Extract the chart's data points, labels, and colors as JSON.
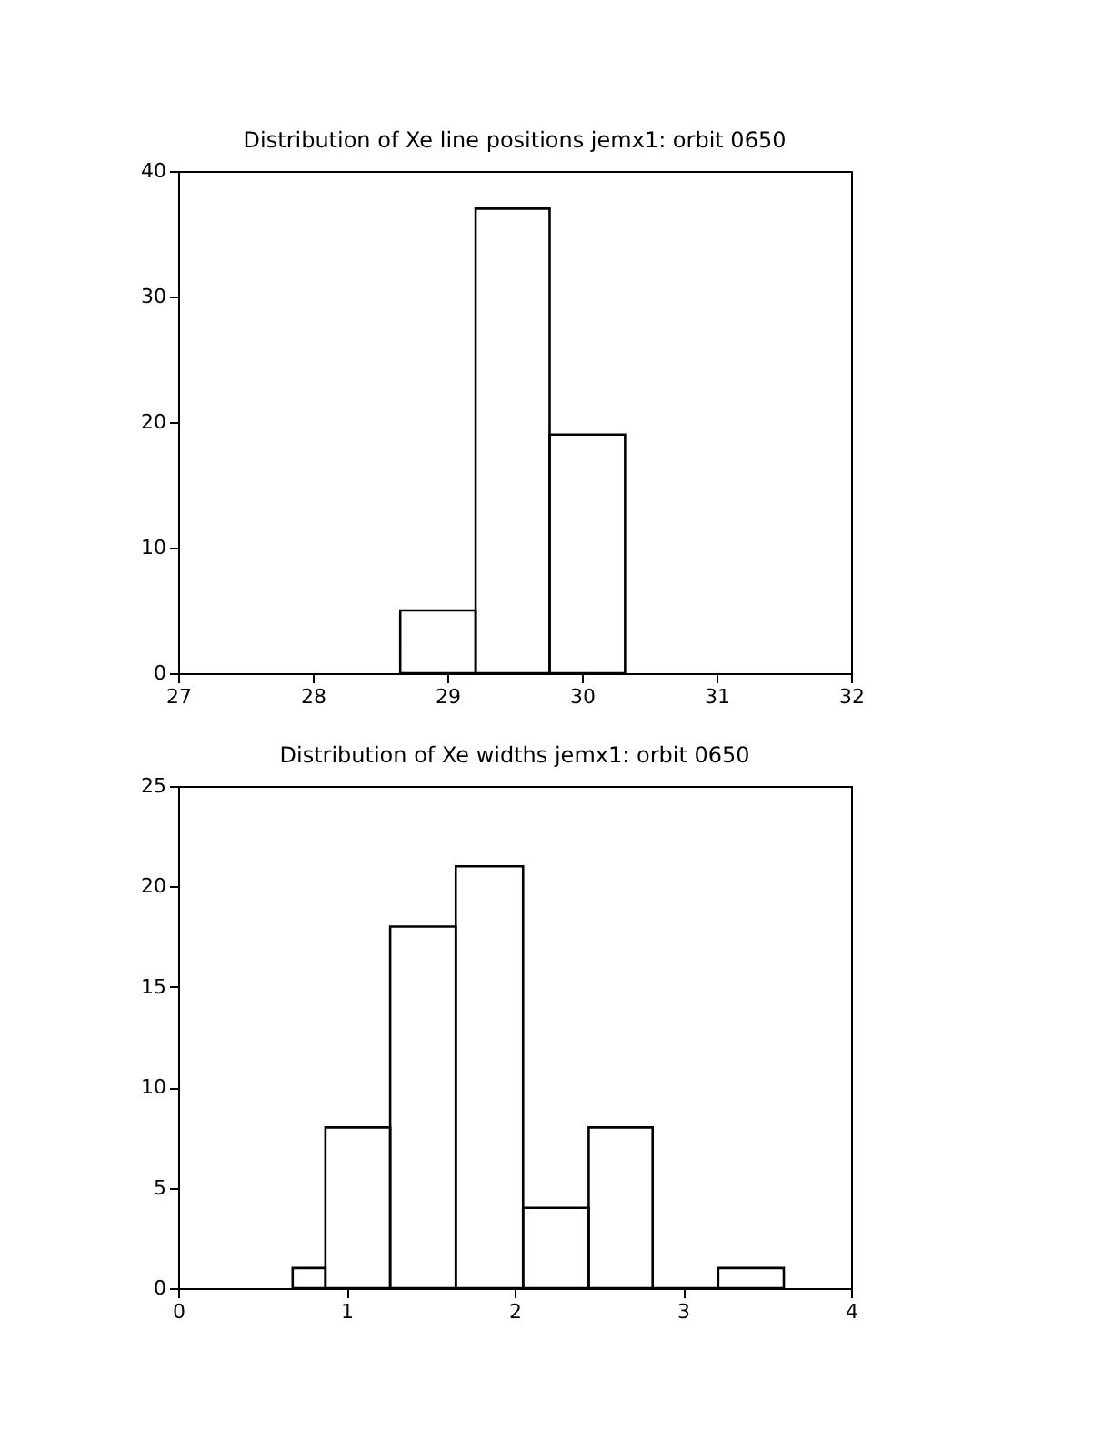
{
  "chart_data": [
    {
      "type": "histogram",
      "title": "Distribution of Xe line positions jemx1: orbit 0650",
      "bins": [
        28.65,
        29.21,
        29.76,
        30.32
      ],
      "values": [
        5,
        37,
        19
      ],
      "color": "#000000",
      "xlim": [
        27,
        32
      ],
      "xticks": [
        27,
        28,
        29,
        30,
        31,
        32
      ],
      "ylim": [
        0,
        40
      ],
      "yticks": [
        0,
        10,
        20,
        30,
        40
      ],
      "grid": false
    },
    {
      "type": "histogram",
      "title": "Distribution of Xe widths jemx1: orbit 0650",
      "bins": [
        0.68,
        0.875,
        1.26,
        1.65,
        2.05,
        2.44,
        2.82,
        3.21,
        3.6
      ],
      "values": [
        1,
        8,
        18,
        21,
        4,
        8,
        0,
        1
      ],
      "color": "#000000",
      "xlim": [
        0,
        4
      ],
      "xticks": [
        0,
        1,
        2,
        3,
        4
      ],
      "ylim": [
        0,
        25
      ],
      "yticks": [
        0,
        5,
        10,
        15,
        20,
        25
      ],
      "grid": false
    }
  ]
}
